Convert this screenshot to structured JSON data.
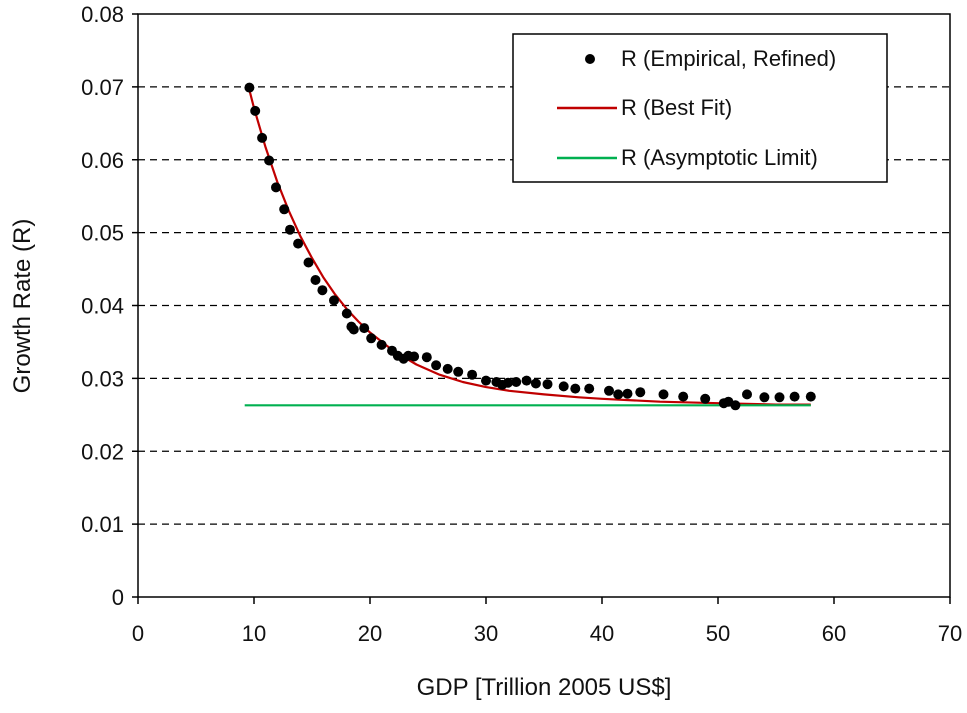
{
  "chart_data": {
    "type": "scatter",
    "title": "",
    "xlabel": "GDP [Trillion 2005 US$]",
    "ylabel": "Growth Rate (R)",
    "xlim": [
      0,
      70
    ],
    "ylim": [
      0,
      0.08
    ],
    "x_ticks": [
      0,
      10,
      20,
      30,
      40,
      50,
      60,
      70
    ],
    "x_tick_labels": [
      "0",
      "10",
      "20",
      "30",
      "40",
      "50",
      "60",
      "70"
    ],
    "y_ticks": [
      0,
      0.01,
      0.02,
      0.03,
      0.04,
      0.05,
      0.06,
      0.07,
      0.08
    ],
    "y_tick_labels": [
      "0",
      "0.01",
      "0.02",
      "0.03",
      "0.04",
      "0.05",
      "0.06",
      "0.07",
      "0.08"
    ],
    "grid": {
      "horizontal": true,
      "style": "dashed"
    },
    "legend_position": "top-right",
    "series": [
      {
        "name": "R (Empirical, Refined)",
        "kind": "markers",
        "color": "#000000",
        "points": [
          [
            9.6,
            0.0699
          ],
          [
            10.1,
            0.0667
          ],
          [
            10.7,
            0.063
          ],
          [
            11.3,
            0.0599
          ],
          [
            11.9,
            0.0562
          ],
          [
            12.6,
            0.0532
          ],
          [
            13.1,
            0.0504
          ],
          [
            13.8,
            0.0485
          ],
          [
            14.7,
            0.0459
          ],
          [
            15.3,
            0.0435
          ],
          [
            15.9,
            0.0421
          ],
          [
            16.9,
            0.0407
          ],
          [
            18.0,
            0.0389
          ],
          [
            18.4,
            0.0371
          ],
          [
            18.6,
            0.0367
          ],
          [
            19.5,
            0.0369
          ],
          [
            20.1,
            0.0355
          ],
          [
            21.0,
            0.0346
          ],
          [
            21.9,
            0.0338
          ],
          [
            22.4,
            0.0331
          ],
          [
            22.9,
            0.0327
          ],
          [
            23.3,
            0.0331
          ],
          [
            23.8,
            0.033
          ],
          [
            24.9,
            0.0329
          ],
          [
            25.7,
            0.0318
          ],
          [
            26.7,
            0.0313
          ],
          [
            27.6,
            0.0309
          ],
          [
            28.8,
            0.0305
          ],
          [
            30.0,
            0.0297
          ],
          [
            30.9,
            0.0295
          ],
          [
            31.4,
            0.0291
          ],
          [
            31.9,
            0.0294
          ],
          [
            32.6,
            0.0295
          ],
          [
            33.5,
            0.0297
          ],
          [
            34.3,
            0.0293
          ],
          [
            35.3,
            0.0292
          ],
          [
            36.7,
            0.0289
          ],
          [
            37.7,
            0.0286
          ],
          [
            38.9,
            0.0286
          ],
          [
            40.6,
            0.0283
          ],
          [
            41.4,
            0.0278
          ],
          [
            42.2,
            0.0279
          ],
          [
            43.3,
            0.0281
          ],
          [
            45.3,
            0.0278
          ],
          [
            47.0,
            0.0275
          ],
          [
            48.9,
            0.0272
          ],
          [
            50.5,
            0.0266
          ],
          [
            50.9,
            0.0268
          ],
          [
            51.5,
            0.0263
          ],
          [
            52.5,
            0.0278
          ],
          [
            54.0,
            0.0274
          ],
          [
            55.3,
            0.0274
          ],
          [
            56.6,
            0.0275
          ],
          [
            58.0,
            0.0275
          ]
        ]
      },
      {
        "name": "R (Best Fit)",
        "kind": "line",
        "color": "#c00000",
        "points": [
          [
            9.5,
            0.0702
          ],
          [
            10.0,
            0.0671
          ],
          [
            11.0,
            0.0617
          ],
          [
            12.0,
            0.057
          ],
          [
            13.0,
            0.053
          ],
          [
            14.0,
            0.0495
          ],
          [
            15.0,
            0.0465
          ],
          [
            16.0,
            0.0438
          ],
          [
            17.0,
            0.0415
          ],
          [
            18.0,
            0.0395
          ],
          [
            19.0,
            0.0378
          ],
          [
            20.0,
            0.0363
          ],
          [
            22.0,
            0.0338
          ],
          [
            24.0,
            0.0319
          ],
          [
            26.0,
            0.0305
          ],
          [
            28.0,
            0.0295
          ],
          [
            30.0,
            0.0288
          ],
          [
            32.0,
            0.0283
          ],
          [
            35.0,
            0.0278
          ],
          [
            38.0,
            0.0274
          ],
          [
            40.0,
            0.0272
          ],
          [
            45.0,
            0.0268
          ],
          [
            50.0,
            0.0266
          ],
          [
            55.0,
            0.0264
          ],
          [
            58.0,
            0.0264
          ]
        ]
      },
      {
        "name": "R (Asymptotic Limit)",
        "kind": "line",
        "color": "#00b050",
        "points": [
          [
            9.2,
            0.0263
          ],
          [
            58.0,
            0.0263
          ]
        ]
      }
    ]
  }
}
